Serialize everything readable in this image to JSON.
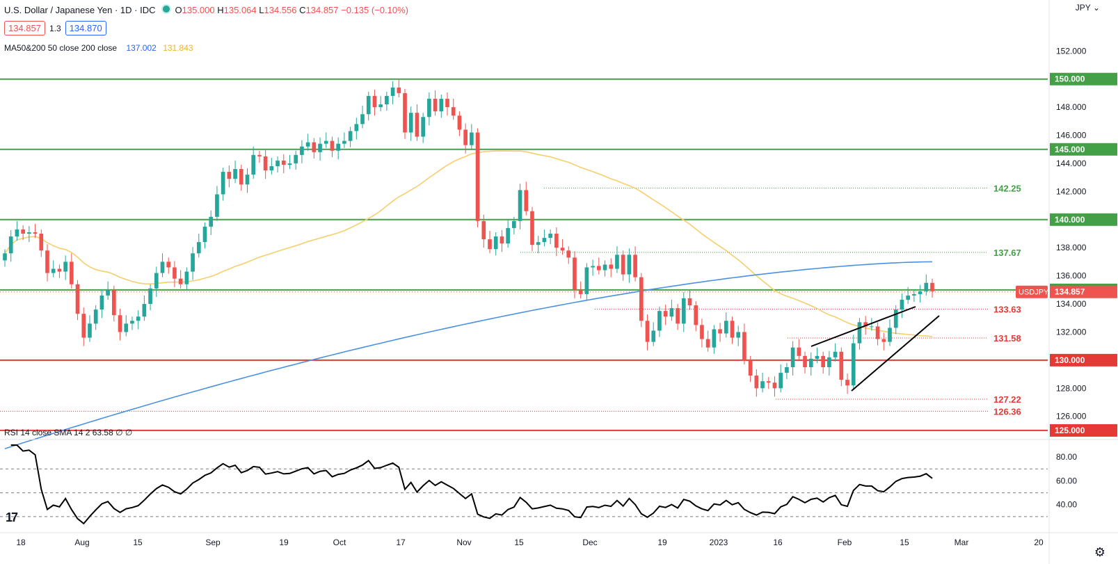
{
  "header": {
    "symbol": "U.S. Dollar / Japanese Yen · 1D · IDC",
    "open_label": "O",
    "open": "135.000",
    "high_label": "H",
    "high": "135.064",
    "low_label": "L",
    "low": "134.556",
    "close_label": "C",
    "close": "134.857",
    "change": "−0.135 (−0.10%)"
  },
  "quote": {
    "bid": "134.857",
    "spread": "1.3",
    "ask": "134.870"
  },
  "ma_legend": {
    "label": "MA50&200 50 close 200 close",
    "ma50": "137.002",
    "ma200": "131.843"
  },
  "rsi_legend": {
    "label": "RSI 14 close SMA 14 2",
    "value": "63.58",
    "extra1": "∅",
    "extra2": "∅"
  },
  "currency_menu": "JPY",
  "symbol_tag": "USDJPY",
  "colors": {
    "up": "#26a69a",
    "down": "#ef5350",
    "ma200": "#4a90e2",
    "ma50": "#f6cf6b",
    "support_green": "#43a047",
    "support_red": "#e53935",
    "label_green": "#43a047",
    "label_red": "#e53935"
  },
  "chart_data": {
    "type": "candlestick",
    "title": "U.S. Dollar / Japanese Yen · 1D · IDC",
    "ylim": [
      124.6,
      153.4
    ],
    "y_ticks": [
      126,
      128,
      130,
      132,
      134,
      136,
      138,
      140,
      142,
      144,
      146,
      148,
      152
    ],
    "y_tick_labels": [
      "126.000",
      "128.000",
      "130.000",
      "132.000",
      "134.000",
      "136.000",
      "138.000",
      "140.000",
      "142.000",
      "144.000",
      "146.000",
      "148.000",
      "152.000"
    ],
    "x_ticks": [
      "18",
      "Aug",
      "15",
      "Sep",
      "19",
      "Oct",
      "17",
      "Nov",
      "15",
      "Dec",
      "19",
      "2023",
      "16",
      "Feb",
      "15",
      "Mar",
      "20"
    ],
    "horizontal_levels": [
      {
        "value": 150.0,
        "label": "150.000",
        "color": "green"
      },
      {
        "value": 145.0,
        "label": "145.000",
        "color": "green"
      },
      {
        "value": 140.0,
        "label": "140.000",
        "color": "green"
      },
      {
        "value": 135.0,
        "label": "135.000",
        "color": "green"
      },
      {
        "value": 130.0,
        "label": "130.000",
        "color": "red"
      },
      {
        "value": 125.0,
        "label": "125.000",
        "color": "red"
      }
    ],
    "dotted_levels": [
      {
        "value": 142.25,
        "label": "142.25",
        "color": "green"
      },
      {
        "value": 137.67,
        "label": "137.67",
        "color": "green"
      },
      {
        "value": 133.63,
        "label": "133.63",
        "color": "red"
      },
      {
        "value": 131.58,
        "label": "131.58",
        "color": "red"
      },
      {
        "value": 127.22,
        "label": "127.22",
        "color": "red"
      },
      {
        "value": 126.36,
        "label": "126.36",
        "color": "red"
      }
    ],
    "last_price": {
      "value": 134.857,
      "label": "134.857"
    },
    "closes": [
      137.6,
      138.8,
      139.3,
      139.0,
      139.1,
      139.0,
      137.8,
      136.2,
      136.5,
      136.3,
      137.0,
      135.4,
      133.3,
      131.6,
      132.6,
      133.6,
      134.6,
      135.0,
      133.2,
      132.0,
      132.6,
      132.8,
      133.1,
      134.0,
      135.1,
      136.2,
      137.0,
      136.6,
      135.8,
      135.4,
      136.3,
      137.6,
      138.4,
      139.5,
      140.2,
      141.8,
      143.4,
      142.9,
      143.6,
      142.5,
      143.2,
      144.6,
      144.5,
      143.5,
      143.8,
      144.2,
      143.9,
      144.0,
      144.6,
      145.2,
      145.5,
      144.8,
      145.4,
      145.6,
      144.9,
      145.4,
      145.6,
      146.3,
      146.8,
      147.5,
      148.8,
      148.0,
      148.2,
      148.8,
      149.4,
      149.0,
      146.2,
      147.6,
      145.9,
      147.3,
      148.6,
      147.7,
      148.6,
      148.0,
      147.4,
      146.4,
      145.3,
      146.2,
      139.9,
      138.6,
      137.9,
      138.8,
      138.3,
      139.4,
      139.9,
      142.1,
      140.6,
      138.2,
      138.4,
      138.7,
      139.0,
      138.0,
      137.8,
      137.3,
      135.0,
      134.7,
      136.6,
      136.7,
      136.4,
      136.8,
      136.5,
      137.5,
      136.1,
      137.5,
      135.9,
      132.8,
      131.3,
      132.1,
      133.5,
      133.1,
      133.7,
      132.6,
      134.4,
      133.9,
      132.5,
      131.5,
      130.9,
      132.2,
      131.9,
      132.8,
      131.6,
      132.0,
      130.0,
      128.9,
      128.0,
      128.5,
      128.4,
      128.0,
      129.1,
      129.5,
      130.9,
      130.3,
      129.5,
      130.1,
      130.3,
      129.5,
      130.2,
      130.6,
      128.6,
      128.2,
      131.2,
      132.7,
      132.4,
      132.4,
      131.5,
      131.3,
      132.3,
      133.6,
      134.3,
      134.6,
      134.7,
      134.9,
      135.5,
      134.9
    ]
  }
}
